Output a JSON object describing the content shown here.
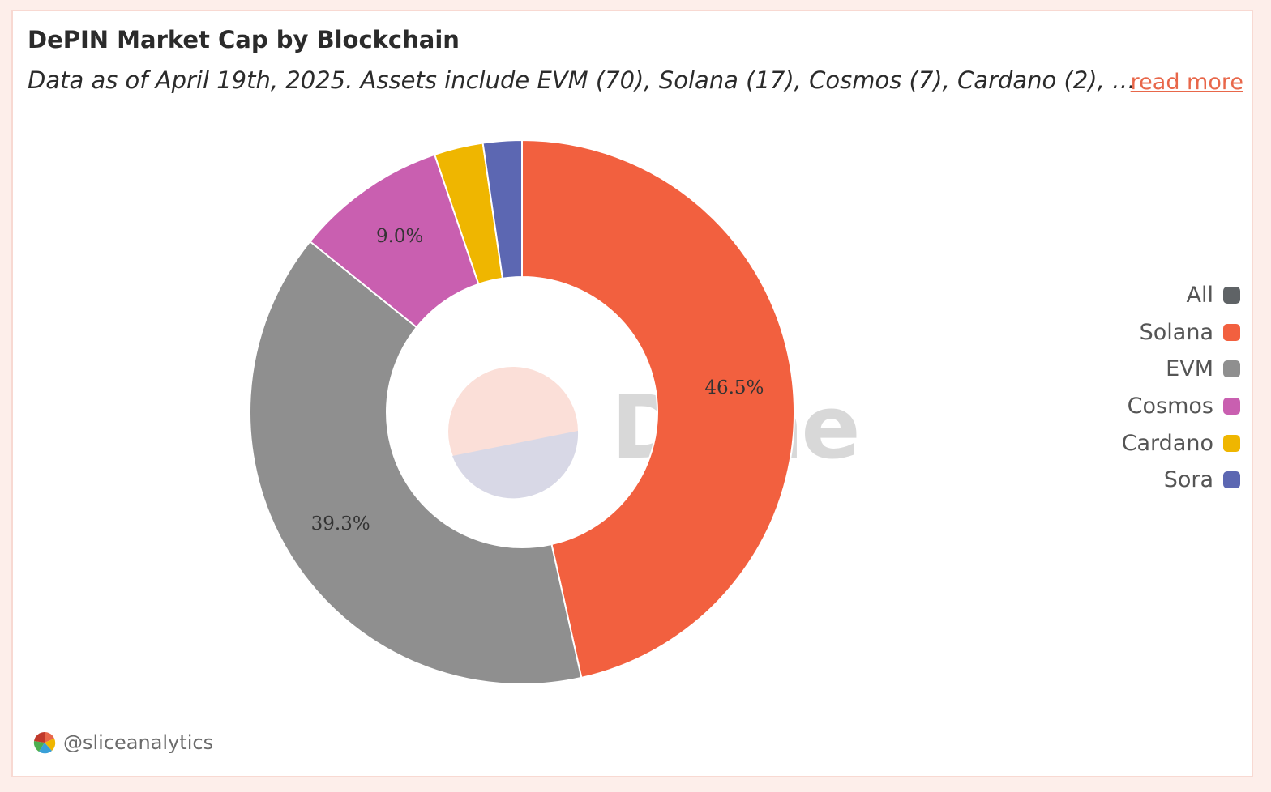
{
  "header": {
    "title": "DePIN Market Cap by Blockchain",
    "subtitle": "Data as of April 19th, 2025. Assets include EVM (70), Solana (17), Cosmos (7), Cardano (2), …",
    "read_more": "read more"
  },
  "watermark": "Dune",
  "footer": {
    "handle": "@sliceanalytics",
    "logo_icon": "slice-analytics-logo-icon"
  },
  "legend": [
    {
      "label": "All",
      "color": "#5f6366"
    },
    {
      "label": "Solana",
      "color": "#f2603f"
    },
    {
      "label": "EVM",
      "color": "#8f8f8f"
    },
    {
      "label": "Cosmos",
      "color": "#c95fb0"
    },
    {
      "label": "Cardano",
      "color": "#efb600"
    },
    {
      "label": "Sora",
      "color": "#5c67b2"
    }
  ],
  "chart_data": {
    "type": "pie",
    "donut": true,
    "legend_position": "right",
    "series": [
      {
        "name": "Solana",
        "value": 46.5,
        "label": "46.5%",
        "color": "#f2603f"
      },
      {
        "name": "EVM",
        "value": 39.3,
        "label": "39.3%",
        "color": "#8f8f8f"
      },
      {
        "name": "Cosmos",
        "value": 9.0,
        "label": "9.0%",
        "color": "#c95fb0"
      },
      {
        "name": "Cardano",
        "value": 2.9,
        "label": "",
        "color": "#efb600"
      },
      {
        "name": "Sora",
        "value": 2.3,
        "label": "",
        "color": "#5c67b2"
      }
    ]
  }
}
